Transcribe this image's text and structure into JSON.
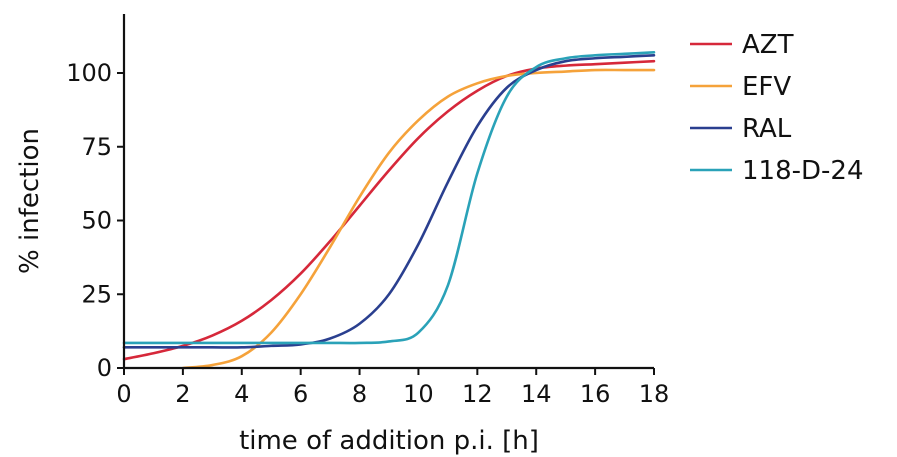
{
  "chart_data": {
    "type": "line",
    "title": "",
    "xlabel": "time of addition p.i. [h]",
    "ylabel": "% infection",
    "xlim": [
      0,
      18
    ],
    "ylim": [
      0,
      120
    ],
    "xticks": [
      0,
      2,
      4,
      6,
      8,
      10,
      12,
      14,
      16,
      18
    ],
    "yticks": [
      0,
      25,
      50,
      75,
      100
    ],
    "grid": false,
    "legend_position": "top-right",
    "series": [
      {
        "name": "AZT",
        "color": "#d6283a",
        "x": [
          0,
          1,
          2,
          3,
          4,
          5,
          6,
          7,
          8,
          9,
          10,
          11,
          12,
          13,
          14,
          15,
          16,
          17,
          18
        ],
        "y": [
          3,
          5,
          7.5,
          11,
          16,
          23,
          32,
          43,
          55,
          67,
          78,
          87,
          94,
          99,
          101.5,
          102.5,
          103,
          103.5,
          104
        ]
      },
      {
        "name": "EFV",
        "color": "#f5a23a",
        "x": [
          2,
          3,
          4,
          5,
          6,
          7,
          8,
          9,
          10,
          11,
          12,
          13,
          14,
          15,
          16,
          17,
          18
        ],
        "y": [
          0,
          1,
          4,
          12,
          25,
          41,
          58,
          73,
          84,
          92,
          96.5,
          99,
          100,
          100.5,
          101,
          101,
          101
        ]
      },
      {
        "name": "RAL",
        "color": "#2a3f8f",
        "x": [
          0,
          1,
          2,
          3,
          4,
          5,
          6,
          7,
          8,
          9,
          10,
          11,
          12,
          13,
          14,
          15,
          16,
          17,
          18
        ],
        "y": [
          7,
          7,
          7,
          7,
          7,
          7.5,
          8,
          10,
          15,
          25,
          42,
          63,
          82,
          95,
          101,
          104,
          105,
          105.5,
          106
        ]
      },
      {
        "name": "118-D-24",
        "color": "#2aa2b8",
        "x": [
          0,
          1,
          2,
          3,
          4,
          5,
          6,
          7,
          8,
          9,
          10,
          11,
          12,
          13,
          14,
          15,
          16,
          17,
          18
        ],
        "y": [
          8.5,
          8.5,
          8.5,
          8.5,
          8.5,
          8.5,
          8.5,
          8.5,
          8.5,
          9,
          12,
          28,
          66,
          92,
          102,
          105,
          106,
          106.5,
          107
        ]
      }
    ]
  }
}
